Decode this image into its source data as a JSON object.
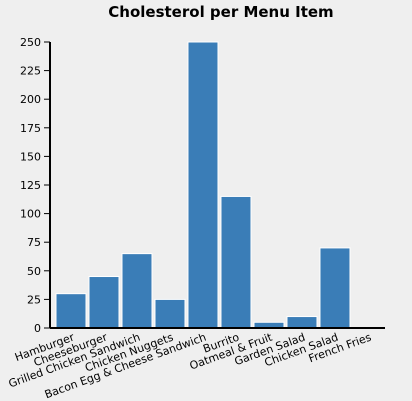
{
  "chart_data": {
    "type": "bar",
    "title": "Cholesterol per Menu Item",
    "xlabel": "",
    "ylabel": "",
    "categories": [
      "Hamburger",
      "Cheeseburger",
      "Grilled Chicken Sandwich",
      "Chicken Nuggets",
      "Bacon Egg & Cheese Sandwich",
      "Burrito",
      "Oatmeal & Fruit",
      "Garden Salad",
      "Chicken Salad",
      "French Fries"
    ],
    "values": [
      30,
      45,
      65,
      25,
      250,
      115,
      5,
      10,
      70,
      0
    ],
    "ylim": [
      0,
      250
    ],
    "yticks": [
      0,
      25,
      50,
      75,
      100,
      125,
      150,
      175,
      200,
      225,
      250
    ],
    "grid": false,
    "bar_color": "#3a7db7",
    "background": "#efefef"
  }
}
